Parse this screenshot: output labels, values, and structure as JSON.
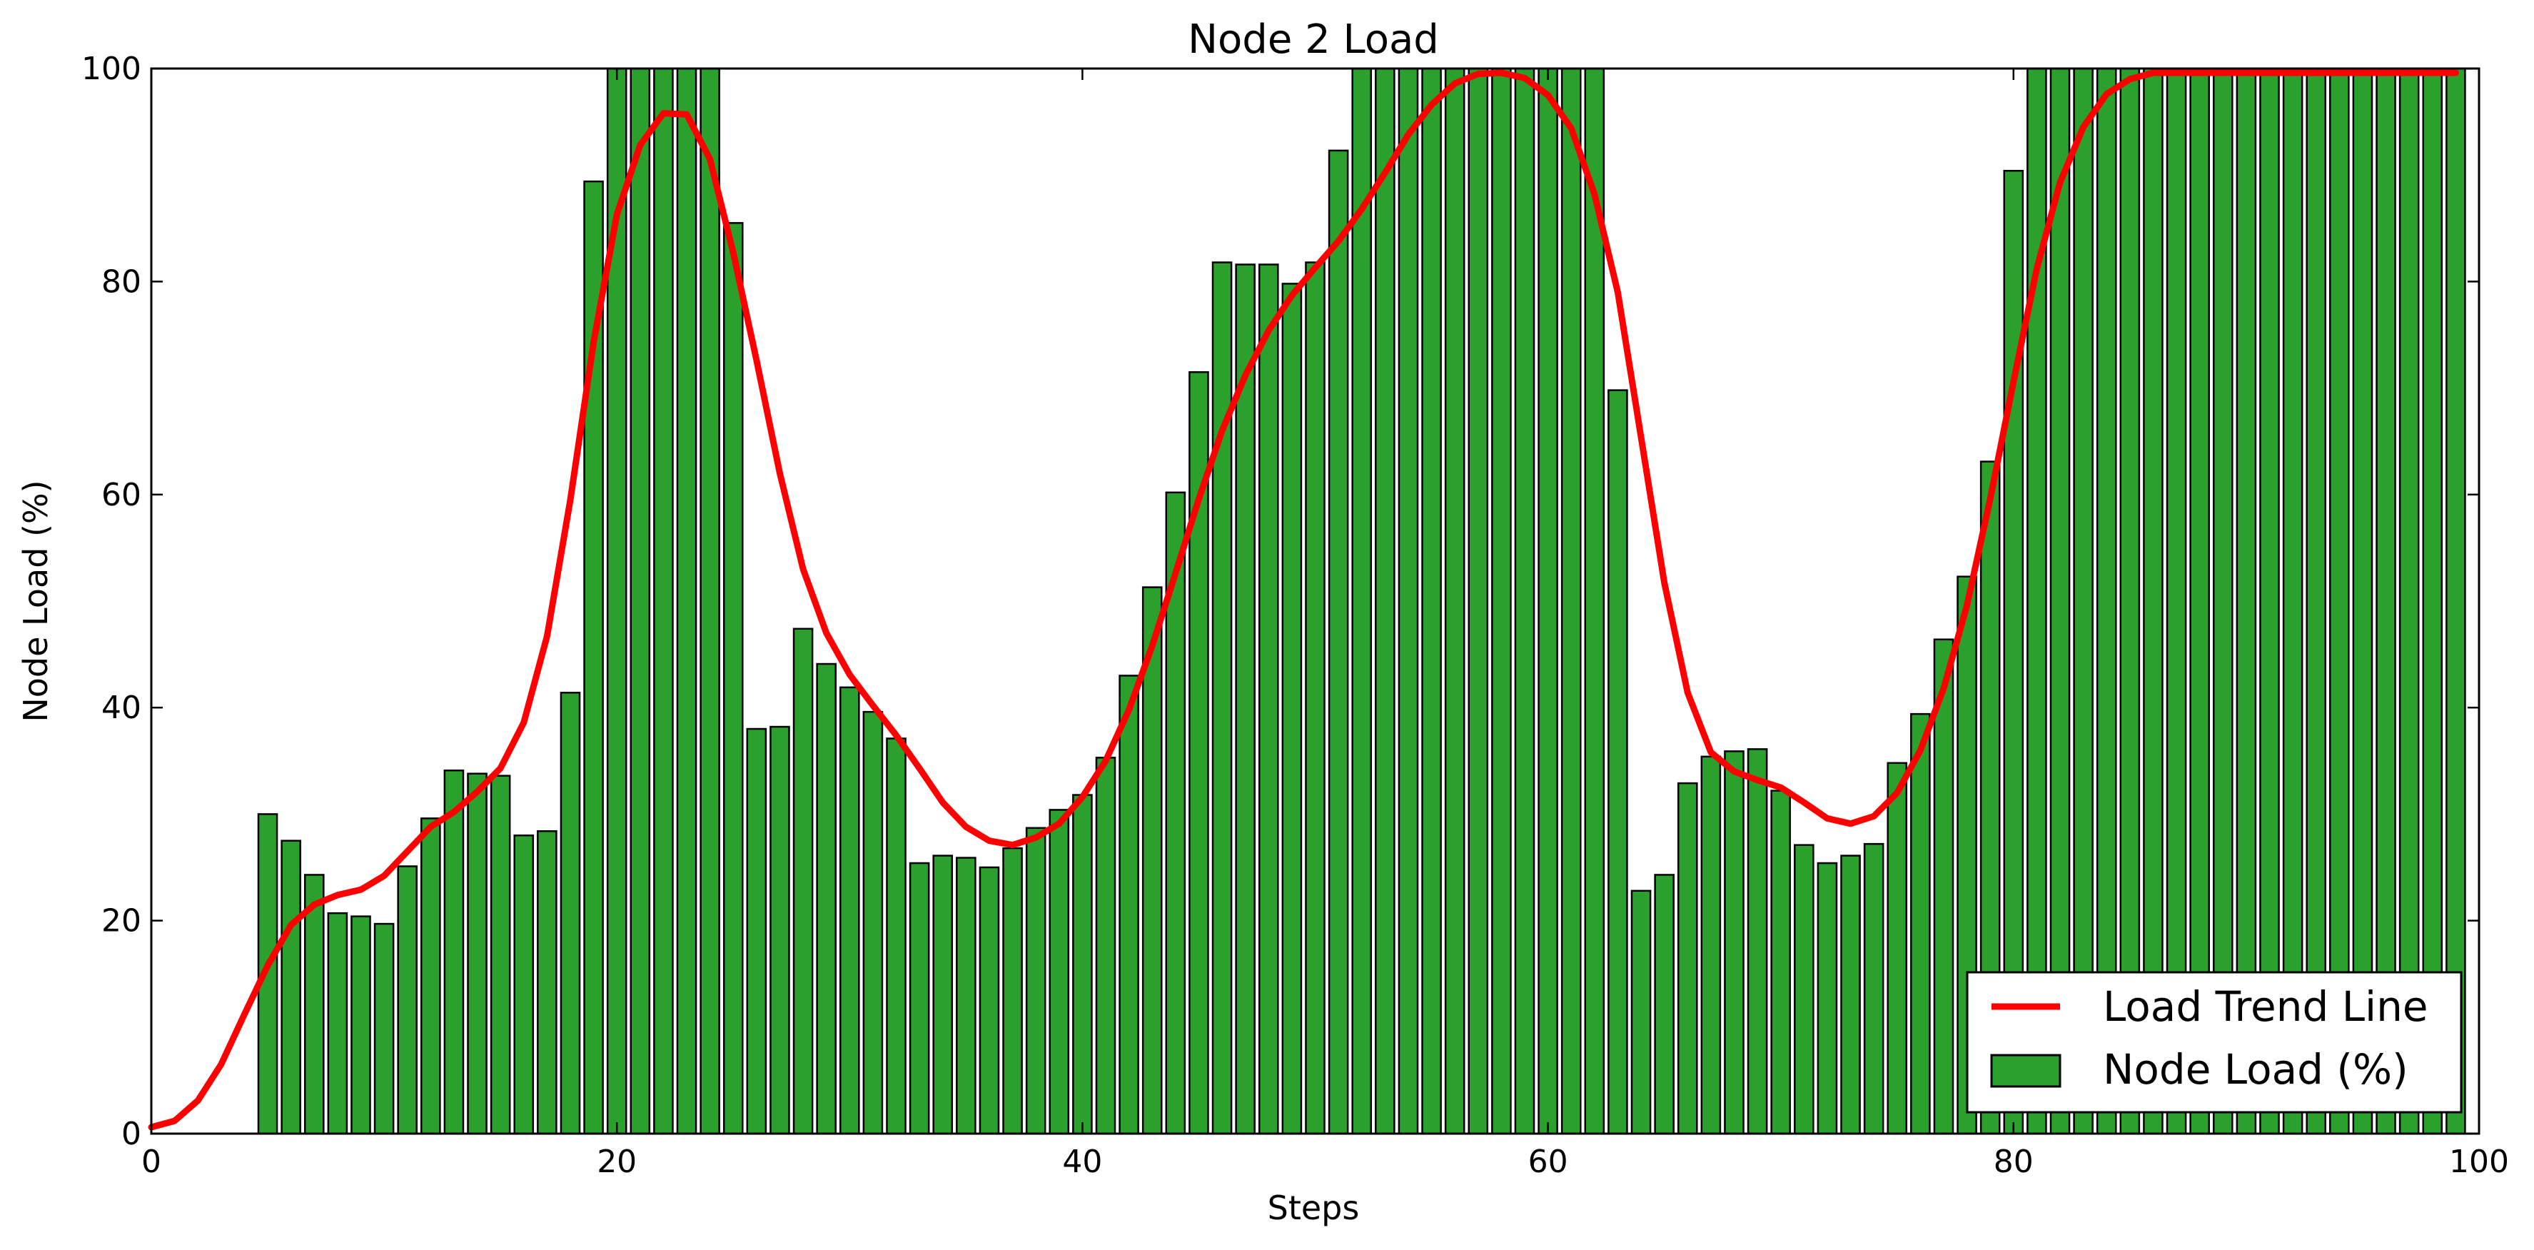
{
  "chart_data": {
    "type": "bar",
    "title": "Node 2 Load",
    "xlabel": "Steps",
    "ylabel": "Node Load (%)",
    "xlim": [
      0,
      100
    ],
    "ylim": [
      0,
      100
    ],
    "xticks": [
      0,
      20,
      40,
      60,
      80,
      100
    ],
    "yticks": [
      0,
      20,
      40,
      60,
      80,
      100
    ],
    "grid": false,
    "legend_position": "bottom-right",
    "colors": {
      "bars": "#2ca02c",
      "bar_edge": "#000000",
      "trend": "#ff0000"
    },
    "series": [
      {
        "name": "Node Load (%)",
        "type": "bar",
        "x_start": 5,
        "values": [
          30.0,
          27.5,
          24.3,
          20.7,
          20.4,
          19.7,
          25.1,
          29.6,
          34.1,
          33.8,
          33.6,
          28.0,
          28.4,
          41.4,
          89.4,
          100,
          100,
          100,
          100,
          100,
          85.5,
          38.0,
          38.2,
          47.4,
          44.1,
          41.9,
          39.6,
          37.1,
          25.4,
          26.1,
          25.9,
          25.0,
          26.8,
          28.7,
          30.4,
          31.8,
          35.3,
          43.0,
          51.3,
          60.2,
          71.5,
          81.8,
          81.6,
          81.6,
          79.8,
          81.8,
          92.3,
          100,
          100,
          100,
          100,
          100,
          100,
          100,
          100,
          100,
          100,
          100,
          69.8,
          22.8,
          24.3,
          32.9,
          35.4,
          35.9,
          36.1,
          32.2,
          27.1,
          25.4,
          26.1,
          27.2,
          34.8,
          39.4,
          46.4,
          52.3,
          63.1,
          90.4,
          100,
          100,
          100,
          100,
          100,
          100,
          100,
          100,
          100,
          100,
          100,
          100,
          100,
          100,
          100,
          100,
          100,
          100,
          100
        ]
      },
      {
        "name": "Load Trend Line",
        "type": "line",
        "x": [
          0,
          1,
          2,
          3,
          4,
          5,
          6,
          7,
          8,
          9,
          10,
          11,
          12,
          13,
          14,
          15,
          16,
          17,
          18,
          19,
          20,
          21,
          22,
          23,
          24,
          25,
          26,
          27,
          28,
          29,
          30,
          31,
          32,
          33,
          34,
          35,
          36,
          37,
          38,
          39,
          40,
          41,
          42,
          43,
          44,
          45,
          46,
          47,
          48,
          49,
          50,
          51,
          52,
          53,
          54,
          55,
          56,
          57,
          58,
          59,
          60,
          61,
          62,
          63,
          64,
          65,
          66,
          67,
          68,
          69,
          70,
          71,
          72,
          73,
          74,
          75,
          76,
          77,
          78,
          79,
          80,
          81,
          82,
          83,
          84,
          85,
          86,
          87,
          88,
          89,
          90,
          91,
          92,
          93,
          94,
          95,
          96,
          97,
          98,
          99
        ],
        "y": [
          0.6,
          1.2,
          3.1,
          6.5,
          11.2,
          15.8,
          19.6,
          21.5,
          22.4,
          22.9,
          24.2,
          26.5,
          28.8,
          30.2,
          32.1,
          34.3,
          38.6,
          46.7,
          59.5,
          74.3,
          86.3,
          92.8,
          95.8,
          95.7,
          91.5,
          82.7,
          72.6,
          62.0,
          53.0,
          47.0,
          43.1,
          40.2,
          37.4,
          34.3,
          31.1,
          28.8,
          27.5,
          27.1,
          27.8,
          29.1,
          31.6,
          35.0,
          39.8,
          45.8,
          52.6,
          59.6,
          66.0,
          71.2,
          75.4,
          78.7,
          81.3,
          83.8,
          86.8,
          90.2,
          93.8,
          96.6,
          98.6,
          99.5,
          99.6,
          99.1,
          97.5,
          94.4,
          88.2,
          79.0,
          65.4,
          51.7,
          41.4,
          35.8,
          34.0,
          33.2,
          32.5,
          31.1,
          29.6,
          29.1,
          29.8,
          32.0,
          36.0,
          41.8,
          49.6,
          59.6,
          70.6,
          81.2,
          89.3,
          94.5,
          97.6,
          99.0,
          99.6,
          99.6,
          99.6,
          99.6,
          99.6,
          99.6,
          99.6,
          99.6,
          99.6,
          99.6,
          99.6,
          99.6,
          99.6,
          99.6
        ]
      }
    ],
    "legend": [
      {
        "label": "Load Trend Line",
        "kind": "line"
      },
      {
        "label": "Node Load (%)",
        "kind": "bar"
      }
    ]
  }
}
